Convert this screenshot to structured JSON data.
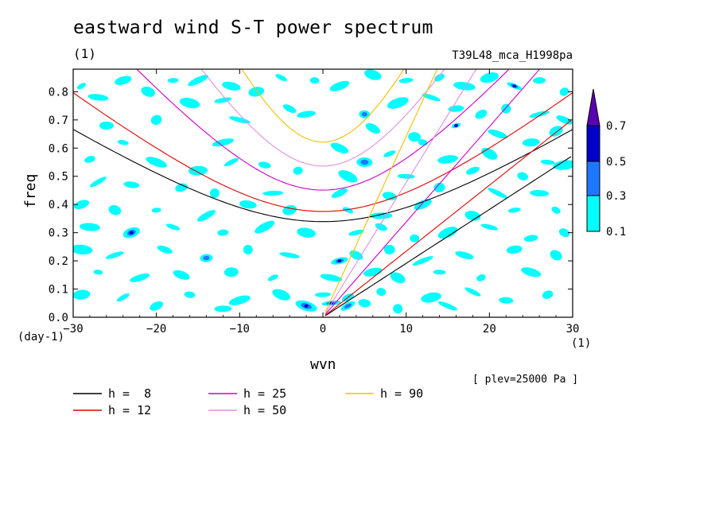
{
  "title": "eastward wind S-T power spectrum",
  "subtitle_left": "(1)",
  "subtitle_right": "T39L48_mca_H1998pa",
  "plev_note": "[ plev=25000 Pa ]",
  "chart_data": {
    "type": "heatmap",
    "xlabel": "wvn",
    "ylabel": "freq",
    "x_unit": "(1)",
    "y_unit": "(day-1)",
    "xlim": [
      -30,
      30
    ],
    "ylim": [
      0,
      0.88
    ],
    "x_ticks": [
      -30,
      -20,
      -10,
      0,
      10,
      20,
      30
    ],
    "x_tick_labels": [
      "−30",
      "−20",
      "−10",
      "0",
      "10",
      "20",
      "30"
    ],
    "y_ticks": [
      0.0,
      0.1,
      0.2,
      0.3,
      0.4,
      0.5,
      0.6,
      0.7,
      0.8
    ],
    "y_tick_labels": [
      "0.0",
      "0.1",
      "0.2",
      "0.3",
      "0.4",
      "0.5",
      "0.6",
      "0.7",
      "0.8"
    ],
    "colorbar": {
      "levels": [
        "0.1",
        "0.3",
        "0.5",
        "0.7"
      ],
      "colors": [
        "#00ffff",
        "#1e78ff",
        "#0000c8",
        "#5a00b4"
      ]
    },
    "dispersion_curves": [
      {
        "name": "h =  8",
        "h": 8,
        "color": "#000000"
      },
      {
        "name": "h = 12",
        "h": 12,
        "color": "#e00000"
      },
      {
        "name": "h = 25",
        "h": 25,
        "color": "#cc00cc"
      },
      {
        "name": "h = 50",
        "h": 50,
        "color": "#e090e0"
      },
      {
        "name": "h = 90",
        "h": 90,
        "color": "#f0c000"
      }
    ],
    "power_blobs": [
      [
        -29,
        0.82,
        0.18
      ],
      [
        -27,
        0.78,
        0.12
      ],
      [
        -24,
        0.84,
        0.14
      ],
      [
        -21,
        0.8,
        0.15
      ],
      [
        -18,
        0.84,
        0.14
      ],
      [
        -15,
        0.84,
        0.12
      ],
      [
        -11,
        0.82,
        0.14
      ],
      [
        -8,
        0.8,
        0.12
      ],
      [
        -5,
        0.85,
        0.12
      ],
      [
        -1,
        0.84,
        0.14
      ],
      [
        2,
        0.82,
        0.12
      ],
      [
        6,
        0.86,
        0.15
      ],
      [
        10,
        0.84,
        0.18
      ],
      [
        14,
        0.85,
        0.14
      ],
      [
        17,
        0.82,
        0.12
      ],
      [
        20,
        0.85,
        0.13
      ],
      [
        23,
        0.82,
        0.36
      ],
      [
        26,
        0.84,
        0.12
      ],
      [
        29,
        0.8,
        0.14
      ],
      [
        -16,
        0.76,
        0.14
      ],
      [
        -12,
        0.77,
        0.12
      ],
      [
        -4,
        0.74,
        0.12
      ],
      [
        5,
        0.72,
        0.3
      ],
      [
        9,
        0.76,
        0.2
      ],
      [
        13,
        0.78,
        0.16
      ],
      [
        16,
        0.74,
        0.14
      ],
      [
        19,
        0.72,
        0.13
      ],
      [
        22,
        0.74,
        0.12
      ],
      [
        26,
        0.72,
        0.14
      ],
      [
        29,
        0.7,
        0.12
      ],
      [
        -26,
        0.68,
        0.12
      ],
      [
        -20,
        0.7,
        0.12
      ],
      [
        -10,
        0.7,
        0.12
      ],
      [
        -2,
        0.72,
        0.16
      ],
      [
        6,
        0.67,
        0.24
      ],
      [
        11,
        0.64,
        0.18
      ],
      [
        16,
        0.68,
        0.36
      ],
      [
        21,
        0.65,
        0.14
      ],
      [
        25,
        0.62,
        0.12
      ],
      [
        28,
        0.66,
        0.14
      ],
      [
        -24,
        0.62,
        0.14
      ],
      [
        -12,
        0.62,
        0.12
      ],
      [
        2,
        0.6,
        0.14
      ],
      [
        5,
        0.55,
        0.32
      ],
      [
        8,
        0.58,
        0.16
      ],
      [
        12,
        0.62,
        0.14
      ],
      [
        15,
        0.56,
        0.14
      ],
      [
        20,
        0.58,
        0.16
      ],
      [
        27,
        0.55,
        0.14
      ],
      [
        -28,
        0.56,
        0.12
      ],
      [
        -20,
        0.55,
        0.14
      ],
      [
        -15,
        0.52,
        0.12
      ],
      [
        -11,
        0.55,
        0.14
      ],
      [
        -7,
        0.54,
        0.12
      ],
      [
        -3,
        0.52,
        0.14
      ],
      [
        3,
        0.5,
        0.16
      ],
      [
        10,
        0.5,
        0.14
      ],
      [
        18,
        0.52,
        0.12
      ],
      [
        24,
        0.5,
        0.14
      ],
      [
        29,
        0.54,
        0.12
      ],
      [
        -27,
        0.48,
        0.14
      ],
      [
        -23,
        0.47,
        0.18
      ],
      [
        -17,
        0.46,
        0.12
      ],
      [
        -13,
        0.44,
        0.14
      ],
      [
        -6,
        0.44,
        0.12
      ],
      [
        2,
        0.44,
        0.16
      ],
      [
        8,
        0.43,
        0.16
      ],
      [
        14,
        0.46,
        0.14
      ],
      [
        21,
        0.44,
        0.14
      ],
      [
        26,
        0.44,
        0.12
      ],
      [
        -29,
        0.4,
        0.12
      ],
      [
        -25,
        0.38,
        0.14
      ],
      [
        -20,
        0.38,
        0.12
      ],
      [
        -14,
        0.36,
        0.16
      ],
      [
        -9,
        0.4,
        0.12
      ],
      [
        -4,
        0.38,
        0.14
      ],
      [
        3,
        0.38,
        0.14
      ],
      [
        7,
        0.36,
        0.16
      ],
      [
        12,
        0.4,
        0.14
      ],
      [
        18,
        0.36,
        0.14
      ],
      [
        23,
        0.38,
        0.14
      ],
      [
        28,
        0.38,
        0.12
      ],
      [
        -28,
        0.32,
        0.14
      ],
      [
        -23,
        0.3,
        0.34
      ],
      [
        -18,
        0.32,
        0.12
      ],
      [
        -12,
        0.3,
        0.16
      ],
      [
        -7,
        0.32,
        0.14
      ],
      [
        -2,
        0.3,
        0.14
      ],
      [
        4,
        0.3,
        0.16
      ],
      [
        7,
        0.32,
        0.22
      ],
      [
        11,
        0.28,
        0.18
      ],
      [
        15,
        0.3,
        0.16
      ],
      [
        20,
        0.32,
        0.14
      ],
      [
        25,
        0.28,
        0.14
      ],
      [
        29,
        0.3,
        0.12
      ],
      [
        -29,
        0.24,
        0.12
      ],
      [
        -25,
        0.22,
        0.16
      ],
      [
        -19,
        0.24,
        0.12
      ],
      [
        -14,
        0.21,
        0.32
      ],
      [
        -9,
        0.24,
        0.14
      ],
      [
        -4,
        0.22,
        0.14
      ],
      [
        2,
        0.2,
        0.36
      ],
      [
        4,
        0.22,
        0.2
      ],
      [
        8,
        0.24,
        0.18
      ],
      [
        12,
        0.2,
        0.16
      ],
      [
        17,
        0.22,
        0.14
      ],
      [
        23,
        0.24,
        0.14
      ],
      [
        28,
        0.22,
        0.12
      ],
      [
        -27,
        0.16,
        0.14
      ],
      [
        -22,
        0.14,
        0.14
      ],
      [
        -17,
        0.15,
        0.18
      ],
      [
        -11,
        0.16,
        0.12
      ],
      [
        -6,
        0.14,
        0.14
      ],
      [
        1,
        0.14,
        0.18
      ],
      [
        6,
        0.16,
        0.2
      ],
      [
        9,
        0.14,
        0.16
      ],
      [
        14,
        0.16,
        0.14
      ],
      [
        19,
        0.14,
        0.14
      ],
      [
        25,
        0.16,
        0.12
      ],
      [
        -29,
        0.08,
        0.12
      ],
      [
        -24,
        0.07,
        0.12
      ],
      [
        -16,
        0.08,
        0.14
      ],
      [
        -10,
        0.06,
        0.12
      ],
      [
        -5,
        0.08,
        0.14
      ],
      [
        0,
        0.08,
        0.18
      ],
      [
        3,
        0.07,
        0.18
      ],
      [
        7,
        0.09,
        0.16
      ],
      [
        13,
        0.07,
        0.18
      ],
      [
        18,
        0.09,
        0.14
      ],
      [
        22,
        0.06,
        0.12
      ],
      [
        27,
        0.08,
        0.12
      ],
      [
        -2,
        0.04,
        0.36
      ],
      [
        1,
        0.05,
        0.38
      ],
      [
        3,
        0.04,
        0.32
      ],
      [
        5,
        0.05,
        0.22
      ],
      [
        9,
        0.03,
        0.14
      ],
      [
        15,
        0.04,
        0.14
      ],
      [
        -12,
        0.03,
        0.12
      ],
      [
        -20,
        0.04,
        0.12
      ]
    ]
  }
}
